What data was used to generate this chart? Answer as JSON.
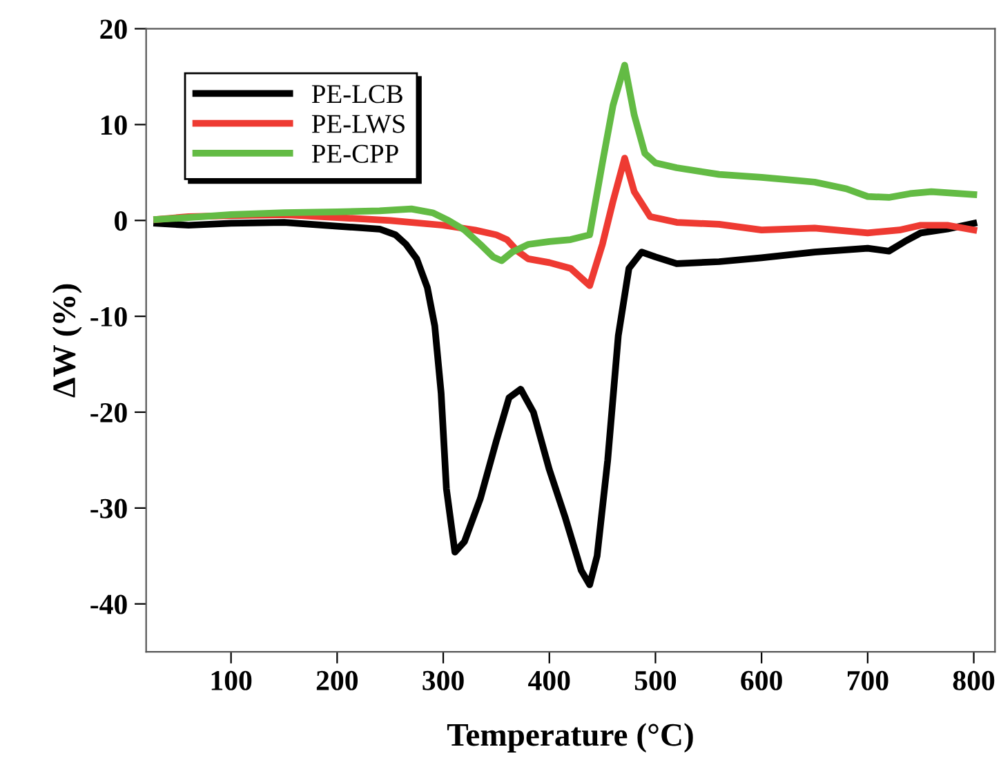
{
  "chart_data": {
    "type": "line",
    "xlabel": "Temperature (°C)",
    "ylabel": "ΔW (%)",
    "xlim": [
      20,
      820
    ],
    "ylim": [
      -45,
      20
    ],
    "xticks": [
      100,
      200,
      300,
      400,
      500,
      600,
      700,
      800
    ],
    "yticks": [
      -40,
      -30,
      -20,
      -10,
      0,
      10,
      20
    ],
    "grid": false,
    "legend": "top left",
    "marker": "none",
    "line_style": "solid",
    "series": [
      {
        "name": "PE-LCB",
        "color": "#000000",
        "x": [
          30,
          60,
          100,
          150,
          200,
          240,
          255,
          265,
          275,
          285,
          292,
          298,
          303,
          311,
          320,
          335,
          350,
          362,
          373,
          385,
          400,
          415,
          430,
          438,
          445,
          455,
          465,
          475,
          487,
          500,
          520,
          560,
          600,
          650,
          700,
          720,
          735,
          750,
          775,
          800
        ],
        "values": [
          -0.3,
          -0.5,
          -0.3,
          -0.2,
          -0.6,
          -0.9,
          -1.5,
          -2.5,
          -4,
          -7,
          -11,
          -18,
          -28,
          -34.6,
          -33.5,
          -29,
          -23,
          -18.5,
          -17.6,
          -20,
          -26,
          -31,
          -36.5,
          -38,
          -35,
          -25,
          -12,
          -5,
          -3.3,
          -3.8,
          -4.5,
          -4.3,
          -3.9,
          -3.3,
          -2.9,
          -3.2,
          -2.2,
          -1.3,
          -0.9,
          -0.3
        ]
      },
      {
        "name": "PE-LWS",
        "color": "#ee3a32",
        "x": [
          30,
          60,
          100,
          150,
          200,
          250,
          300,
          330,
          350,
          360,
          370,
          380,
          400,
          420,
          438,
          450,
          460,
          471,
          480,
          495,
          520,
          560,
          600,
          650,
          700,
          730,
          750,
          775,
          800
        ],
        "values": [
          0.1,
          0.4,
          0.5,
          0.6,
          0.3,
          0,
          -0.5,
          -1,
          -1.5,
          -2,
          -3.2,
          -4,
          -4.4,
          -5,
          -6.8,
          -2.5,
          2,
          6.5,
          3,
          0.4,
          -0.2,
          -0.4,
          -1,
          -0.8,
          -1.3,
          -1,
          -0.5,
          -0.5,
          -1
        ]
      },
      {
        "name": "PE-CPP",
        "color": "#63bb44",
        "x": [
          30,
          60,
          100,
          150,
          200,
          240,
          270,
          290,
          305,
          320,
          335,
          347,
          355,
          365,
          380,
          400,
          420,
          438,
          450,
          460,
          471,
          480,
          490,
          500,
          520,
          560,
          600,
          650,
          680,
          700,
          720,
          740,
          760,
          800
        ],
        "values": [
          0.1,
          0.3,
          0.6,
          0.8,
          0.9,
          1,
          1.2,
          0.8,
          0,
          -1,
          -2.5,
          -3.8,
          -4.2,
          -3.3,
          -2.5,
          -2.2,
          -2,
          -1.5,
          6,
          12,
          16.2,
          11,
          7,
          6,
          5.5,
          4.8,
          4.5,
          4,
          3.3,
          2.5,
          2.4,
          2.8,
          3,
          2.7
        ]
      }
    ]
  }
}
